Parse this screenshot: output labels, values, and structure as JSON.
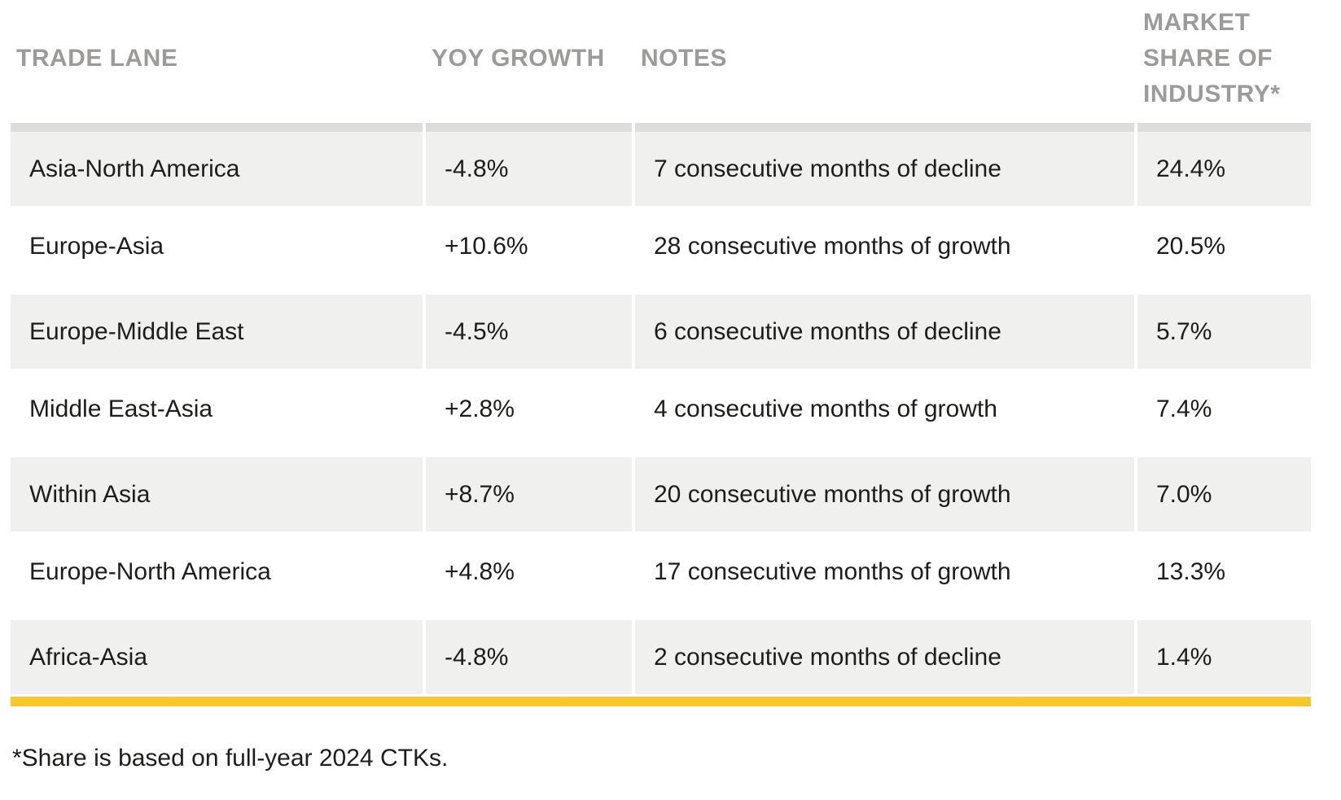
{
  "table": {
    "columns": [
      {
        "label": "TRADE LANE"
      },
      {
        "label": "YOY GROWTH"
      },
      {
        "label": "NOTES"
      },
      {
        "label": "MARKET SHARE OF INDUSTRY*"
      }
    ],
    "rows": [
      {
        "trade_lane": "Asia-North America",
        "yoy_growth": "-4.8%",
        "notes": "7 consecutive months of decline",
        "market_share": "24.4%"
      },
      {
        "trade_lane": "Europe-Asia",
        "yoy_growth": "+10.6%",
        "notes": "28 consecutive months of growth",
        "market_share": "20.5%"
      },
      {
        "trade_lane": "Europe-Middle East",
        "yoy_growth": "-4.5%",
        "notes": "6 consecutive months of decline",
        "market_share": "5.7%"
      },
      {
        "trade_lane": "Middle East-Asia",
        "yoy_growth": "+2.8%",
        "notes": "4 consecutive months of growth",
        "market_share": "7.4%"
      },
      {
        "trade_lane": "Within Asia",
        "yoy_growth": "+8.7%",
        "notes": "20 consecutive months of growth",
        "market_share": "7.0%"
      },
      {
        "trade_lane": "Europe-North America",
        "yoy_growth": "+4.8%",
        "notes": "17 consecutive months of growth",
        "market_share": "13.3%"
      },
      {
        "trade_lane": "Africa-Asia",
        "yoy_growth": "-4.8%",
        "notes": "2 consecutive months of decline",
        "market_share": "1.4%"
      }
    ],
    "footnote": "*Share is based on full-year 2024 CTKs."
  },
  "colors": {
    "accent_bar": "#F7C72F",
    "row_alt_bg": "#F0F0EE",
    "top_border": "#DEDDDC",
    "header_text": "#9C9B99",
    "body_text": "#1D1D1B",
    "page_bg": "#FFFFFF"
  }
}
